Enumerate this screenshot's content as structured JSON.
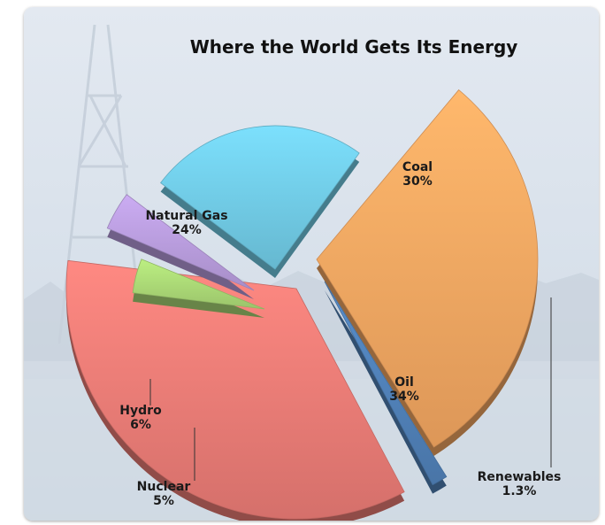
{
  "chart_data": {
    "type": "pie",
    "title": "Where the World Gets Its Energy",
    "slices": [
      {
        "name": "Coal",
        "label": "30%",
        "value": 30,
        "color": "#f0a460"
      },
      {
        "name": "Renewables",
        "label": "1.3%",
        "value": 1.3,
        "color": "#4f7fb5"
      },
      {
        "name": "Oil",
        "label": "34%",
        "value": 34,
        "color": "#e87a74"
      },
      {
        "name": "Nuclear",
        "label": "5%",
        "value": 5,
        "color": "#a8d574"
      },
      {
        "name": "Hydro",
        "label": "6%",
        "value": 6,
        "color": "#b59ad9"
      },
      {
        "name": "Natural Gas",
        "label": "24%",
        "value": 24,
        "color": "#6fc8e2"
      }
    ],
    "legend": "none",
    "label_style": "callout labels with leader lines"
  }
}
